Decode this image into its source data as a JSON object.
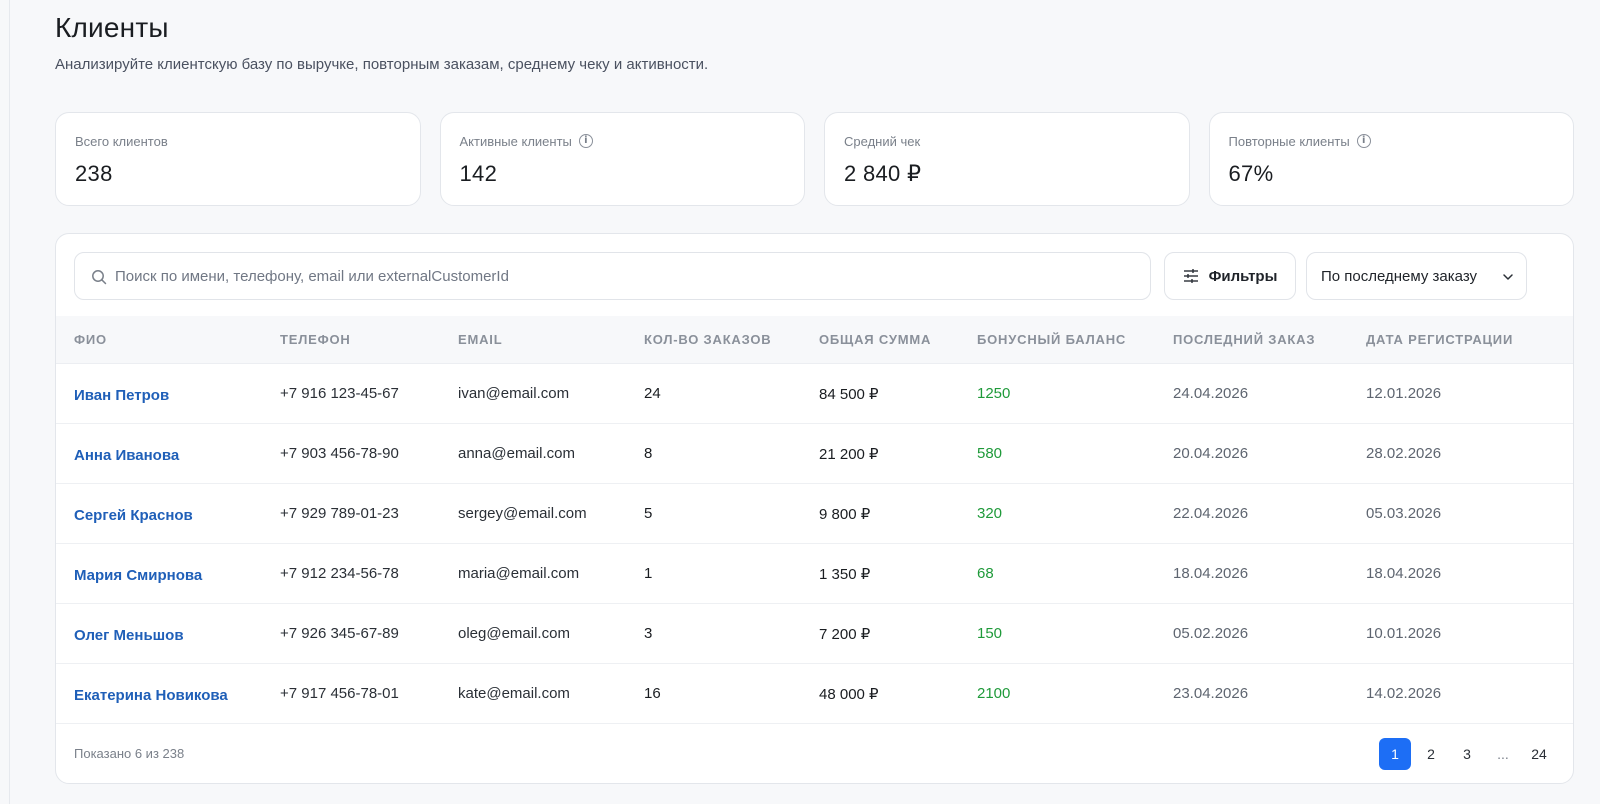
{
  "header": {
    "title": "Клиенты",
    "subtitle": "Анализируйте клиентскую базу по выручке, повторным заказам, среднему чеку и активности."
  },
  "stats": [
    {
      "label": "Всего клиентов",
      "value": "238",
      "info": false
    },
    {
      "label": "Активные клиенты",
      "value": "142",
      "info": true
    },
    {
      "label": "Средний чек",
      "value": "2 840 ₽",
      "info": false
    },
    {
      "label": "Повторные клиенты",
      "value": "67%",
      "info": true
    }
  ],
  "toolbar": {
    "search_placeholder": "Поиск по имени, телефону, email или externalCustomerId",
    "filter_label": "Фильтры",
    "sort_value": "По последнему заказу"
  },
  "table": {
    "columns": [
      "ФИО",
      "ТЕЛЕФОН",
      "EMAIL",
      "КОЛ-ВО ЗАКАЗОВ",
      "ОБЩАЯ СУММА",
      "БОНУСНЫЙ БАЛАНС",
      "ПОСЛЕДНИЙ ЗАКАЗ",
      "ДАТА РЕГИСТРАЦИИ"
    ],
    "rows": [
      {
        "name": "Иван Петров",
        "phone": "+7 916 123-45-67",
        "email": "ivan@email.com",
        "orders": "24",
        "total": "84 500 ₽",
        "bonus": "1250",
        "last_order": "24.04.2026",
        "registered": "12.01.2026"
      },
      {
        "name": "Анна Иванова",
        "phone": "+7 903 456-78-90",
        "email": "anna@email.com",
        "orders": "8",
        "total": "21 200 ₽",
        "bonus": "580",
        "last_order": "20.04.2026",
        "registered": "28.02.2026"
      },
      {
        "name": "Сергей Краснов",
        "phone": "+7 929 789-01-23",
        "email": "sergey@email.com",
        "orders": "5",
        "total": "9 800 ₽",
        "bonus": "320",
        "last_order": "22.04.2026",
        "registered": "05.03.2026"
      },
      {
        "name": "Мария Смирнова",
        "phone": "+7 912 234-56-78",
        "email": "maria@email.com",
        "orders": "1",
        "total": "1 350 ₽",
        "bonus": "68",
        "last_order": "18.04.2026",
        "registered": "18.04.2026"
      },
      {
        "name": "Олег Меньшов",
        "phone": "+7 926 345-67-89",
        "email": "oleg@email.com",
        "orders": "3",
        "total": "7 200 ₽",
        "bonus": "150",
        "last_order": "05.02.2026",
        "registered": "10.01.2026"
      },
      {
        "name": "Екатерина Новикова",
        "phone": "+7 917 456-78-01",
        "email": "kate@email.com",
        "orders": "16",
        "total": "48 000 ₽",
        "bonus": "2100",
        "last_order": "23.04.2026",
        "registered": "14.02.2026"
      }
    ]
  },
  "footer": {
    "shown_text": "Показано 6 из 238",
    "pages": [
      "1",
      "2",
      "3",
      "...",
      "24"
    ],
    "active_page": "1"
  },
  "colors": {
    "accent": "#1d6ef5",
    "link": "#1f5fb8",
    "bonus": "#1f9a3a"
  },
  "icons": {
    "search": "search-icon",
    "filter": "sliders-icon",
    "info": "info-icon",
    "chevron": "chevron-down-icon"
  }
}
